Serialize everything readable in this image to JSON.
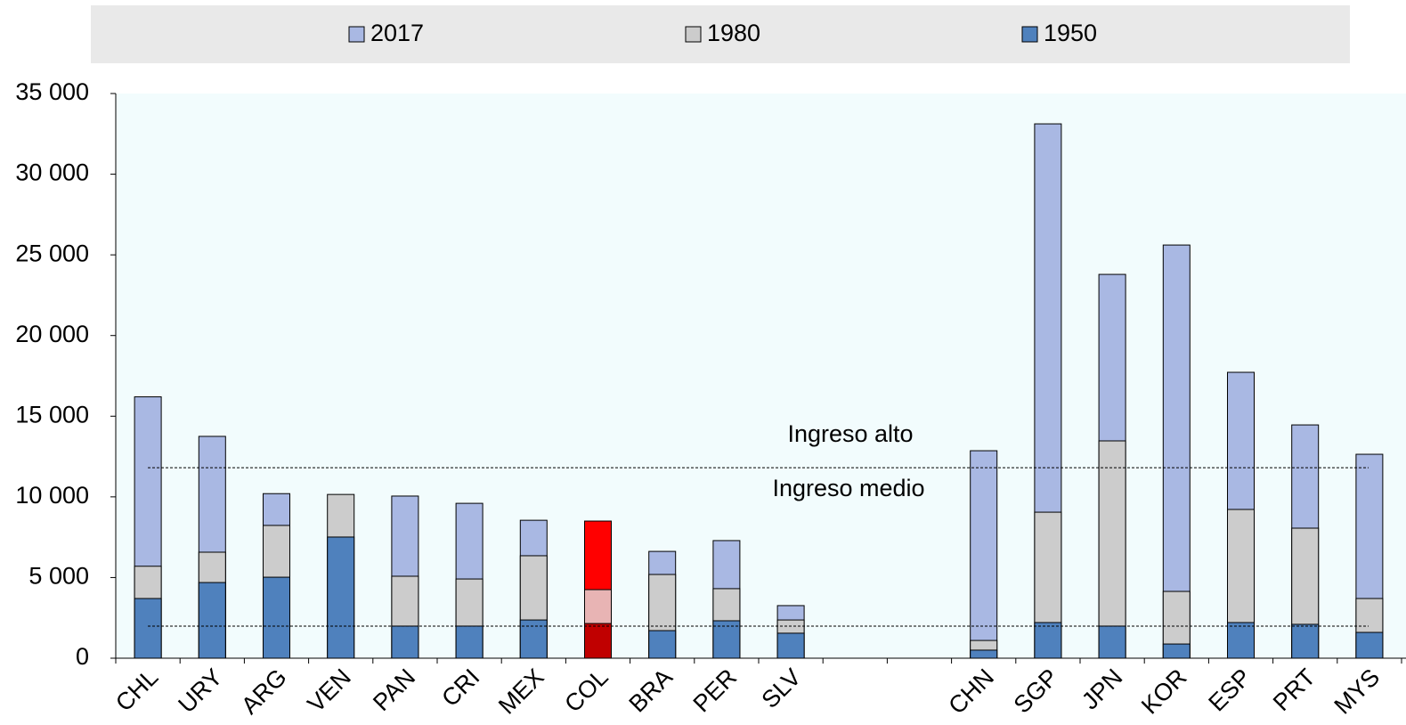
{
  "chart_data": {
    "type": "bar",
    "overlap": true,
    "categories": [
      "CHL",
      "URY",
      "ARG",
      "VEN",
      "PAN",
      "CRI",
      "MEX",
      "COL",
      "BRA",
      "PER",
      "SLV",
      null,
      null,
      "CHN",
      "SGP",
      "JPN",
      "KOR",
      "ESP",
      "PRT",
      "MYS"
    ],
    "series": [
      {
        "name": "2017",
        "color": "#a9b8e3",
        "highlight_color": "#ff0000",
        "values": [
          16200,
          13750,
          10200,
          null,
          10050,
          9600,
          8550,
          8500,
          6620,
          7290,
          3260,
          null,
          null,
          12860,
          33120,
          23790,
          25610,
          17720,
          14460,
          12640
        ]
      },
      {
        "name": "1980",
        "color": "#cccccc",
        "highlight_color": "#e8b4b4",
        "values": [
          5700,
          6570,
          8230,
          10150,
          5080,
          4910,
          6350,
          4250,
          5190,
          4310,
          2370,
          null,
          null,
          1100,
          9050,
          13470,
          4140,
          9220,
          8060,
          3700
        ]
      },
      {
        "name": "1950",
        "color": "#4f81bd",
        "highlight_color": "#c00000",
        "values": [
          3700,
          4690,
          5020,
          7510,
          1990,
          1990,
          2370,
          2150,
          1710,
          2320,
          1550,
          null,
          null,
          500,
          2210,
          1990,
          880,
          2210,
          2100,
          1600
        ]
      }
    ],
    "highlight_index": 7,
    "ylim": [
      0,
      35000
    ],
    "yticks": [
      0,
      {
        "value": 5000,
        "label": "5 000"
      },
      {
        "value": 10000,
        "label": "10 000"
      },
      {
        "value": 15000,
        "label": "15 000"
      },
      {
        "value": 20000,
        "label": "20 000"
      },
      {
        "value": 25000,
        "label": "25 000"
      },
      {
        "value": 30000,
        "label": "30 000"
      },
      {
        "value": 35000,
        "label": "35 000"
      }
    ],
    "reference_lines": [
      11810,
      1990
    ],
    "annotations": [
      "Ingreso alto",
      "Ingreso medio"
    ],
    "legend": "top"
  }
}
